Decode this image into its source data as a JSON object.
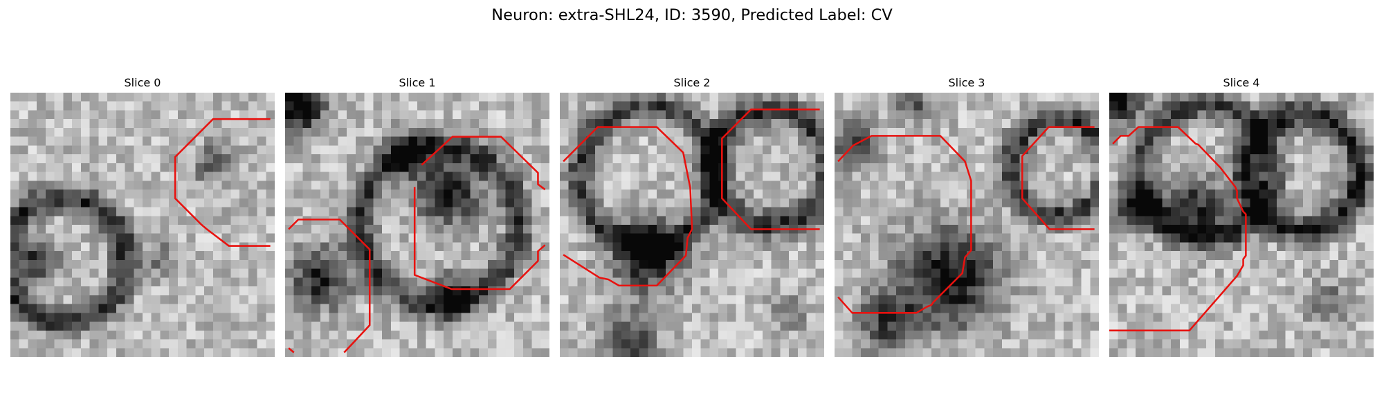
{
  "figure": {
    "title": "Neuron: extra-SHL24, ID: 3590, Predicted Label: CV"
  },
  "panels": [
    {
      "title": "Slice 0",
      "image": "grayscale-microscopy-slice"
    },
    {
      "title": "Slice 1",
      "image": "grayscale-microscopy-slice"
    },
    {
      "title": "Slice 2",
      "image": "grayscale-microscopy-slice"
    },
    {
      "title": "Slice 3",
      "image": "grayscale-microscopy-slice"
    },
    {
      "title": "Slice 4",
      "image": "grayscale-microscopy-slice"
    }
  ],
  "colors": {
    "contour": "#e8120f",
    "background": "#ffffff"
  }
}
